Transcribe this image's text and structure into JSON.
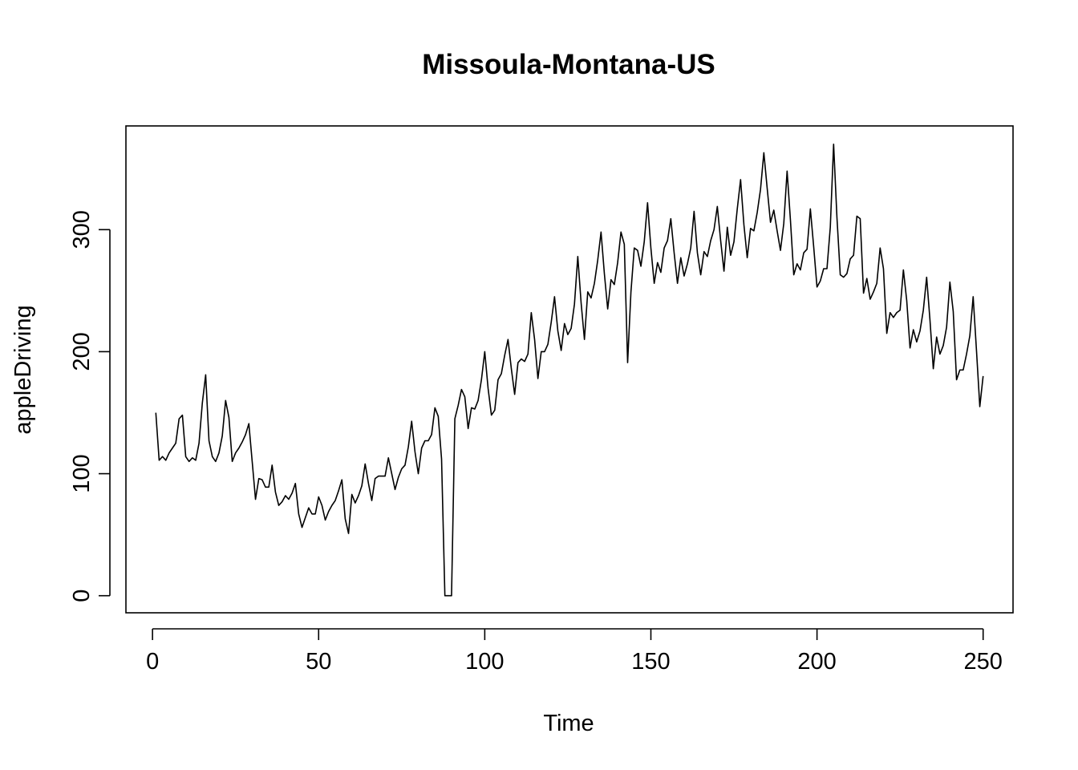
{
  "chart_data": {
    "type": "line",
    "title": "Missoula-Montana-US",
    "xlabel": "Time",
    "ylabel": "appleDriving",
    "xlim": [
      -8,
      259
    ],
    "ylim": [
      -14,
      385
    ],
    "xticks": [
      0,
      50,
      100,
      150,
      200,
      250
    ],
    "yticks": [
      0,
      100,
      200,
      300
    ],
    "grid": false,
    "legend": "none",
    "color": "#000000",
    "series": [
      {
        "x_start": 1,
        "values": [
          150,
          111,
          114,
          111,
          117,
          121,
          125,
          145,
          148,
          114,
          110,
          113,
          111,
          125,
          158,
          181,
          127,
          114,
          110,
          117,
          131,
          160,
          146,
          110,
          117,
          121,
          126,
          132,
          141,
          110,
          79,
          96,
          95,
          89,
          89,
          107,
          85,
          74,
          77,
          82,
          79,
          84,
          92,
          67,
          56,
          64,
          72,
          67,
          67,
          81,
          74,
          62,
          69,
          74,
          78,
          86,
          95,
          63,
          51,
          83,
          76,
          82,
          90,
          108,
          92,
          78,
          96,
          98,
          98,
          98,
          113,
          100,
          87,
          97,
          104,
          107,
          122,
          143,
          118,
          100,
          121,
          127,
          127,
          132,
          154,
          147,
          112,
          0,
          0,
          0,
          145,
          156,
          169,
          163,
          137,
          154,
          153,
          160,
          177,
          200,
          170,
          148,
          152,
          177,
          182,
          197,
          210,
          186,
          165,
          191,
          194,
          192,
          198,
          232,
          210,
          178,
          200,
          200,
          206,
          224,
          245,
          217,
          201,
          223,
          214,
          219,
          239,
          278,
          240,
          210,
          249,
          244,
          256,
          275,
          298,
          264,
          235,
          259,
          255,
          273,
          298,
          288,
          191,
          249,
          285,
          283,
          270,
          290,
          322,
          285,
          256,
          273,
          265,
          285,
          291,
          309,
          281,
          256,
          277,
          262,
          272,
          285,
          315,
          281,
          263,
          282,
          278,
          291,
          300,
          319,
          291,
          266,
          302,
          279,
          290,
          317,
          341,
          304,
          277,
          301,
          299,
          314,
          333,
          363,
          334,
          306,
          316,
          299,
          283,
          305,
          348,
          308,
          263,
          272,
          267,
          281,
          284,
          317,
          286,
          253,
          258,
          268,
          268,
          302,
          370,
          310,
          263,
          261,
          264,
          276,
          279,
          311,
          309,
          248,
          260,
          243,
          249,
          256,
          285,
          268,
          215,
          232,
          228,
          232,
          234,
          267,
          242,
          203,
          218,
          208,
          217,
          234,
          261,
          226,
          186,
          212,
          198,
          205,
          220,
          257,
          233,
          177,
          185,
          185,
          198,
          213,
          245,
          201,
          155,
          180
        ]
      }
    ]
  }
}
